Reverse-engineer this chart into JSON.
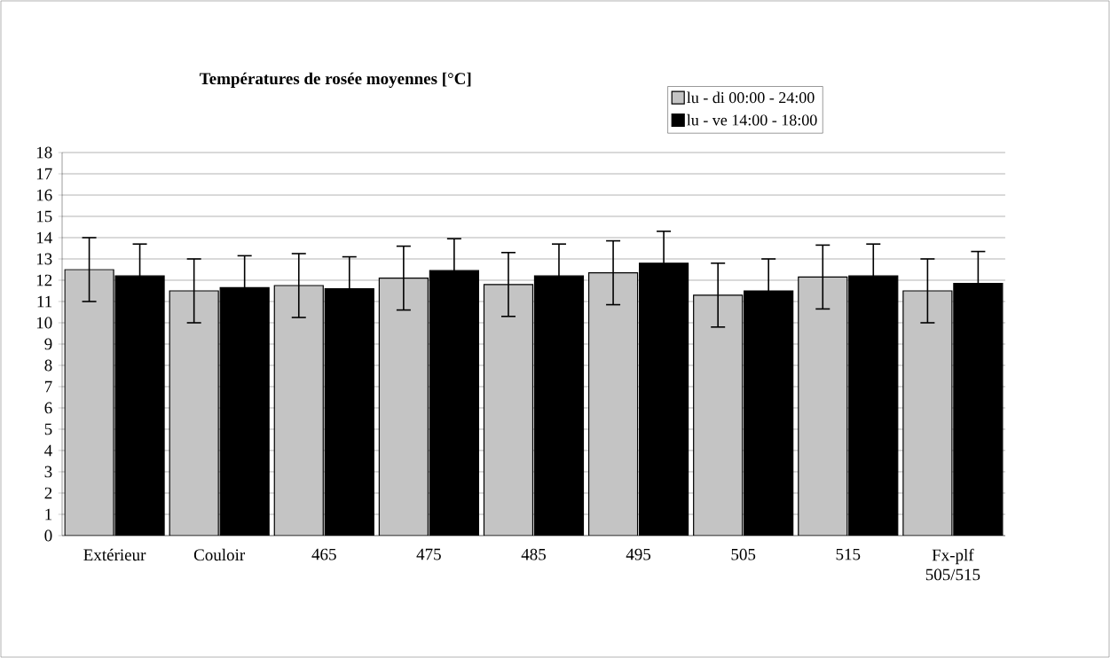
{
  "chart_data": {
    "type": "bar",
    "title": "Températures de rosée moyennes [°C]",
    "categories": [
      "Extérieur",
      "Couloir",
      "465",
      "475",
      "485",
      "495",
      "505",
      "515",
      "Fx-plf 505/515"
    ],
    "series": [
      {
        "name": "lu - di 00:00 - 24:00",
        "color": "#c4c4c4",
        "values": [
          12.5,
          11.5,
          11.75,
          12.1,
          11.8,
          12.35,
          11.3,
          12.15,
          11.5
        ],
        "errors": [
          1.5,
          1.5,
          1.5,
          1.5,
          1.5,
          1.5,
          1.5,
          1.5,
          1.5
        ]
      },
      {
        "name": "lu - ve 14:00 - 18:00",
        "color": "#000000",
        "values": [
          12.2,
          11.65,
          11.6,
          12.45,
          12.2,
          12.8,
          11.5,
          12.2,
          11.85
        ],
        "errors": [
          1.5,
          1.5,
          1.5,
          1.5,
          1.5,
          1.5,
          1.5,
          1.5,
          1.5
        ]
      }
    ],
    "ylim": [
      0,
      18
    ],
    "yticks": [
      0,
      1,
      2,
      3,
      4,
      5,
      6,
      7,
      8,
      9,
      10,
      11,
      12,
      13,
      14,
      15,
      16,
      17,
      18
    ],
    "grid": "y",
    "legend": "top right"
  }
}
